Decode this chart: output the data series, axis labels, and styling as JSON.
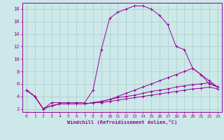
{
  "xlabel": "Windchill (Refroidissement éolien,°C)",
  "background_color": "#cce8e8",
  "grid_color": "#aacccc",
  "line_color": "#990099",
  "xlim": [
    -0.5,
    23.5
  ],
  "ylim": [
    1.5,
    19
  ],
  "yticks": [
    2,
    4,
    6,
    8,
    10,
    12,
    14,
    16,
    18
  ],
  "xticks": [
    0,
    1,
    2,
    3,
    4,
    5,
    6,
    7,
    8,
    9,
    10,
    11,
    12,
    13,
    14,
    15,
    16,
    17,
    18,
    19,
    20,
    21,
    22,
    23
  ],
  "lines": [
    {
      "x": [
        0,
        1,
        2,
        3,
        4,
        5,
        6,
        7,
        8,
        9,
        10,
        11,
        12,
        13,
        14,
        15,
        16,
        17,
        18,
        19,
        20,
        21,
        22,
        23
      ],
      "y": [
        5,
        4,
        2,
        3,
        3,
        3,
        3,
        3,
        5,
        11.5,
        16.5,
        17.5,
        18,
        18.5,
        18.5,
        18,
        17,
        15.5,
        12,
        11.5,
        8.5,
        7.5,
        6,
        5.5
      ]
    },
    {
      "x": [
        0,
        1,
        2,
        3,
        4,
        5,
        6,
        7,
        8,
        9,
        10,
        11,
        12,
        13,
        14,
        15,
        16,
        17,
        18,
        19,
        20,
        21,
        22,
        23
      ],
      "y": [
        5,
        4,
        2,
        2.5,
        2.8,
        2.8,
        2.8,
        2.8,
        3,
        3.2,
        3.5,
        4,
        4.5,
        5,
        5.5,
        6,
        6.5,
        7,
        7.5,
        8,
        8.5,
        7.5,
        6.5,
        5.5
      ]
    },
    {
      "x": [
        0,
        1,
        2,
        3,
        4,
        5,
        6,
        7,
        8,
        9,
        10,
        11,
        12,
        13,
        14,
        15,
        16,
        17,
        18,
        19,
        20,
        21,
        22,
        23
      ],
      "y": [
        5,
        4,
        2,
        2.5,
        2.8,
        2.8,
        2.8,
        2.8,
        3,
        3.2,
        3.5,
        3.8,
        4,
        4.2,
        4.5,
        4.8,
        5,
        5.2,
        5.5,
        5.7,
        5.9,
        6,
        6.2,
        5.5
      ]
    },
    {
      "x": [
        0,
        1,
        2,
        3,
        4,
        5,
        6,
        7,
        8,
        9,
        10,
        11,
        12,
        13,
        14,
        15,
        16,
        17,
        18,
        19,
        20,
        21,
        22,
        23
      ],
      "y": [
        5,
        4,
        2,
        2.5,
        2.8,
        2.8,
        2.8,
        2.8,
        3,
        3,
        3.2,
        3.4,
        3.6,
        3.8,
        4,
        4.2,
        4.4,
        4.6,
        4.8,
        5,
        5.2,
        5.3,
        5.5,
        5.2
      ]
    }
  ]
}
